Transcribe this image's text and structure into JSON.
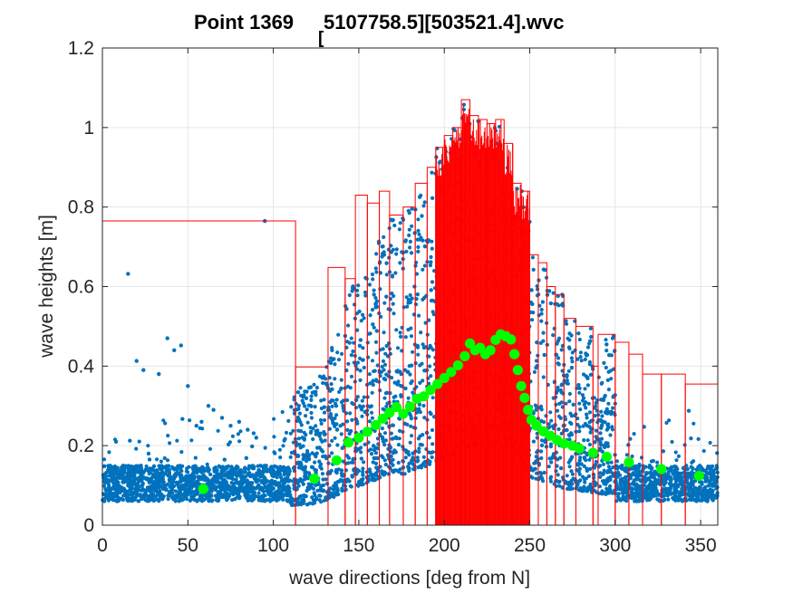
{
  "chart_data": {
    "type": "scatter",
    "title": "Point 1369",
    "title_sub": "[",
    "title_rest": "5107758.5][503521.4].wvc",
    "xlabel": "wave directions [deg from N]",
    "ylabel": "wave heights [m]",
    "xlim": [
      0,
      360
    ],
    "ylim": [
      0,
      1.2
    ],
    "xticks": [
      "0",
      "50",
      "100",
      "150",
      "200",
      "250",
      "300",
      "350"
    ],
    "yticks": [
      "0",
      "0.2",
      "0.4",
      "0.6",
      "0.8",
      "1",
      "1.2"
    ],
    "grid": true,
    "colors": {
      "scatter": "#0072BD",
      "stairs": "#FF0000",
      "mean": "#00FF00",
      "axis": "#262626",
      "grid": "#e6e6e6"
    },
    "stairs_max": {
      "name": "max wave height per direction",
      "bins": [
        [
          0,
          113,
          0.765
        ],
        [
          113,
          132,
          0.398
        ],
        [
          132,
          142,
          0.648
        ],
        [
          142,
          148,
          0.62
        ],
        [
          148,
          155,
          0.83
        ],
        [
          155,
          162,
          0.81
        ],
        [
          162,
          168,
          0.84
        ],
        [
          168,
          176,
          0.78
        ],
        [
          176,
          183,
          0.8
        ],
        [
          183,
          190,
          0.86
        ],
        [
          190,
          195,
          0.9
        ],
        [
          195,
          200,
          0.95
        ],
        [
          200,
          205,
          0.98
        ],
        [
          205,
          210,
          1.0
        ],
        [
          210,
          215,
          1.07
        ],
        [
          215,
          220,
          1.03
        ],
        [
          220,
          225,
          1.02
        ],
        [
          225,
          230,
          1.01
        ],
        [
          230,
          235,
          1.02
        ],
        [
          235,
          240,
          0.96
        ],
        [
          240,
          245,
          0.86
        ],
        [
          245,
          250,
          0.84
        ],
        [
          250,
          255,
          0.68
        ],
        [
          255,
          260,
          0.66
        ],
        [
          260,
          265,
          0.6
        ],
        [
          265,
          270,
          0.58
        ],
        [
          270,
          277,
          0.52
        ],
        [
          277,
          287,
          0.5
        ],
        [
          287,
          290,
          0.4
        ],
        [
          290,
          300,
          0.48
        ],
        [
          300,
          308,
          0.46
        ],
        [
          308,
          316,
          0.43
        ],
        [
          316,
          327,
          0.38
        ],
        [
          327,
          341,
          0.38
        ],
        [
          341,
          360,
          0.355
        ]
      ]
    },
    "mean_points": {
      "name": "mean wave height",
      "x": [
        59,
        124,
        137,
        144,
        150,
        155,
        160,
        164,
        168,
        172,
        176,
        180,
        184,
        188,
        192,
        196,
        200,
        204,
        208,
        212,
        215,
        218,
        221,
        224,
        227,
        230,
        233,
        236,
        239,
        241,
        243,
        245,
        247,
        249,
        251,
        254,
        258,
        262,
        266,
        270,
        275,
        279,
        287,
        295,
        308,
        327,
        349
      ],
      "y": [
        0.091,
        0.117,
        0.163,
        0.208,
        0.22,
        0.235,
        0.252,
        0.268,
        0.283,
        0.297,
        0.28,
        0.298,
        0.318,
        0.324,
        0.34,
        0.355,
        0.37,
        0.385,
        0.402,
        0.425,
        0.457,
        0.44,
        0.446,
        0.43,
        0.44,
        0.466,
        0.48,
        0.475,
        0.467,
        0.43,
        0.39,
        0.35,
        0.32,
        0.29,
        0.265,
        0.25,
        0.236,
        0.225,
        0.214,
        0.205,
        0.2,
        0.193,
        0.182,
        0.172,
        0.158,
        0.141,
        0.124
      ]
    },
    "scatter_outliers": {
      "x": [
        95,
        15,
        38,
        42,
        46,
        20,
        8,
        24,
        33,
        50,
        58,
        62,
        65,
        70,
        75,
        80,
        85,
        90,
        55,
        27
      ],
      "y": [
        0.765,
        0.632,
        0.47,
        0.44,
        0.452,
        0.413,
        0.21,
        0.39,
        0.38,
        0.35,
        0.26,
        0.3,
        0.29,
        0.27,
        0.25,
        0.26,
        0.24,
        0.22,
        0.25,
        0.18
      ]
    }
  }
}
